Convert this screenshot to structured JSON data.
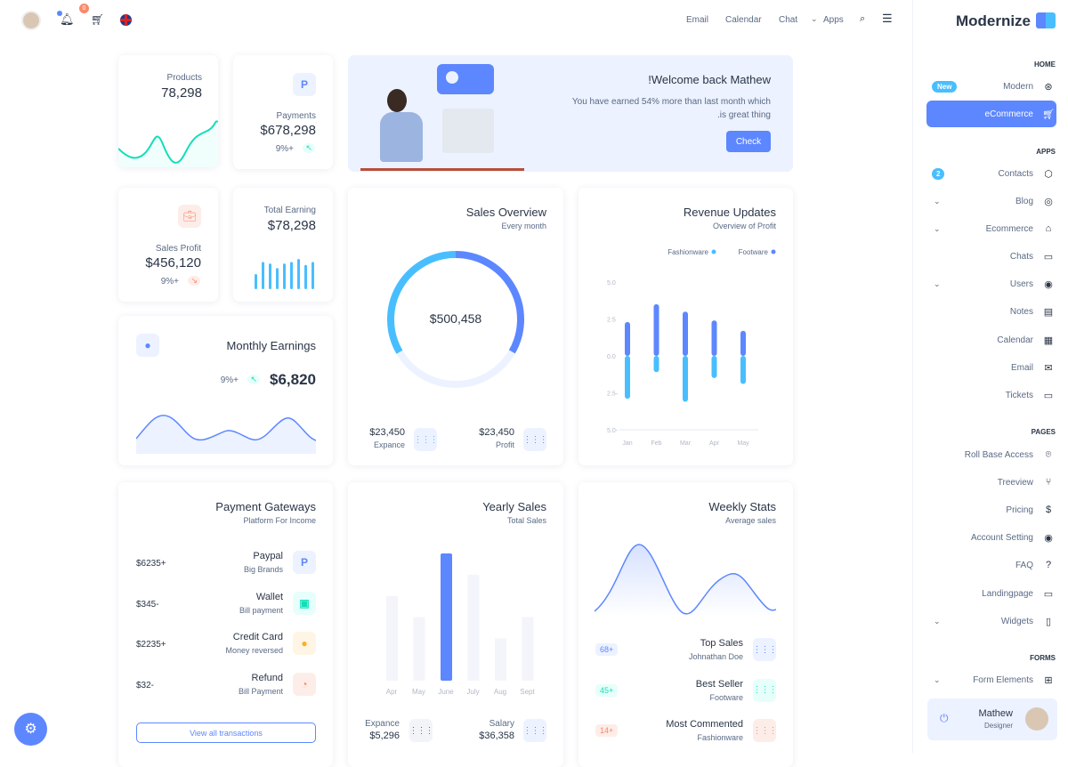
{
  "topbar": {
    "nav": [
      "Email",
      "Calendar",
      "Chat",
      "Apps"
    ],
    "cart_badge": "0"
  },
  "brand": {
    "name": "Modernize",
    "accent": "#5d87ff"
  },
  "sidebar": {
    "home_title": "HOME",
    "apps_title": "APPS",
    "pages_title": "PAGES",
    "forms_title": "FORMS",
    "home": [
      {
        "label": "Modern",
        "badge": "New",
        "icon": "aperture-icon"
      },
      {
        "label": "eCommerce",
        "icon": "cart-icon",
        "active": true
      }
    ],
    "apps": [
      {
        "label": "Contacts",
        "badge": "2",
        "icon": "package-icon"
      },
      {
        "label": "Blog",
        "icon": "chart-donut-icon",
        "chevron": true
      },
      {
        "label": "Ecommerce",
        "icon": "basket-icon",
        "chevron": true
      },
      {
        "label": "Chats",
        "icon": "message-icon"
      },
      {
        "label": "Users",
        "icon": "user-circle-icon",
        "chevron": true
      },
      {
        "label": "Notes",
        "icon": "notes-icon"
      },
      {
        "label": "Calendar",
        "icon": "calendar-icon"
      },
      {
        "label": "Email",
        "icon": "mail-icon"
      },
      {
        "label": "Tickets",
        "icon": "ticket-icon"
      }
    ],
    "pages": [
      {
        "label": "Roll Base Access",
        "icon": "face-id-icon"
      },
      {
        "label": "Treeview",
        "icon": "git-merge-icon"
      },
      {
        "label": "Pricing",
        "icon": "currency-dollar-icon"
      },
      {
        "label": "Account Setting",
        "icon": "user-circle-icon"
      },
      {
        "label": "FAQ",
        "icon": "help-icon"
      },
      {
        "label": "Landingpage",
        "icon": "app-window-icon"
      },
      {
        "label": "Widgets",
        "icon": "layout-icon",
        "chevron": true
      }
    ],
    "forms": [
      {
        "label": "Form Elements",
        "icon": "apps-icon",
        "chevron": true
      }
    ],
    "user": {
      "name": "Mathew",
      "role": "Designer"
    }
  },
  "products": {
    "label": "Products",
    "value": "78,298"
  },
  "payments": {
    "label": "Payments",
    "value": "$678,298",
    "change": "9%+"
  },
  "welcome": {
    "title": "!Welcome back Mathew",
    "text1": "You have earned 54% more than last month which",
    "text2": ".is great thing",
    "button": "Check"
  },
  "sales_profit": {
    "label": "Sales Profit",
    "value": "$456,120",
    "change": "9%+"
  },
  "total_earning": {
    "label": "Total Earning",
    "value": "$78,298",
    "bars": [
      5,
      9,
      8.5,
      7,
      8.5,
      9,
      10,
      8,
      9
    ]
  },
  "monthly": {
    "title": "Monthly Earnings",
    "value": "$6,820",
    "change": "9%+"
  },
  "sales_overview": {
    "title": "Sales Overview",
    "subtitle": "Every month",
    "total": "$500,458",
    "segments": [
      {
        "value": 33.3,
        "color": "#5d87ff"
      },
      {
        "value": 33.3,
        "color": "#ecf2ff"
      },
      {
        "value": 33.4,
        "color": "#49beff"
      }
    ],
    "expense": {
      "value": "$23,450",
      "label": "Expance"
    },
    "profit": {
      "value": "$23,450",
      "label": "Profit"
    }
  },
  "chart_data": {
    "type": "bar",
    "title": "Revenue Updates",
    "subtitle": "Overview of Profit",
    "categories": [
      "Jan",
      "Feb",
      "Mar",
      "Apr",
      "May"
    ],
    "series": [
      {
        "name": "Footware",
        "color": "#5d87ff",
        "values": [
          2.3,
          3.5,
          3.0,
          2.4,
          1.7
        ]
      },
      {
        "name": "Fashionware",
        "color": "#49beff",
        "values": [
          -2.9,
          -1.1,
          -3.1,
          -1.5,
          -1.9
        ]
      }
    ],
    "ylim": [
      -5,
      5
    ],
    "yticks": [
      "5.0",
      "2.5",
      "0.0",
      "2.5-",
      "5.0-"
    ],
    "legend": "top-right",
    "stacked": true
  },
  "gateways": {
    "title": "Payment Gateways",
    "subtitle": "Platform For Income",
    "items": [
      {
        "name": "Paypal",
        "sub": "Big Brands",
        "amount": "$6235+",
        "icon": "paypal-icon",
        "bg": "#ecf2ff",
        "fg": "#5d87ff"
      },
      {
        "name": "Wallet",
        "sub": "Bill payment",
        "amount": "$345-",
        "icon": "wallet-icon",
        "bg": "#e6fffa",
        "fg": "#13deb9"
      },
      {
        "name": "Credit Card",
        "sub": "Money reversed",
        "amount": "$2235+",
        "icon": "credit-card-icon",
        "bg": "#fef5e5",
        "fg": "#ffae1f"
      },
      {
        "name": "Refund",
        "sub": "Bill Payment",
        "amount": "$32-",
        "icon": "pie-icon",
        "bg": "#fdede8",
        "fg": "#fa896b"
      }
    ],
    "button": "View all transactions"
  },
  "yearly": {
    "title": "Yearly Sales",
    "subtitle": "Total Sales",
    "months": [
      "Apr",
      "May",
      "June",
      "July",
      "Aug",
      "Sept"
    ],
    "values": [
      20,
      15,
      30,
      25,
      10,
      15
    ],
    "highlight": "June",
    "expense": {
      "label": "Expance",
      "value": "$5,296"
    },
    "salary": {
      "label": "Salary",
      "value": "$36,358"
    }
  },
  "weekly": {
    "title": "Weekly Stats",
    "subtitle": "Average sales",
    "items": [
      {
        "title": "Top Sales",
        "sub": "Johnathan Doe",
        "badge": "68+",
        "color": "#5d87ff",
        "bg": "#ecf2ff"
      },
      {
        "title": "Best Seller",
        "sub": "Footware",
        "badge": "45+",
        "color": "#13deb9",
        "bg": "#e6fffa"
      },
      {
        "title": "Most Commented",
        "sub": "Fashionware",
        "badge": "14+",
        "color": "#fa896b",
        "bg": "#fdede8"
      }
    ]
  }
}
